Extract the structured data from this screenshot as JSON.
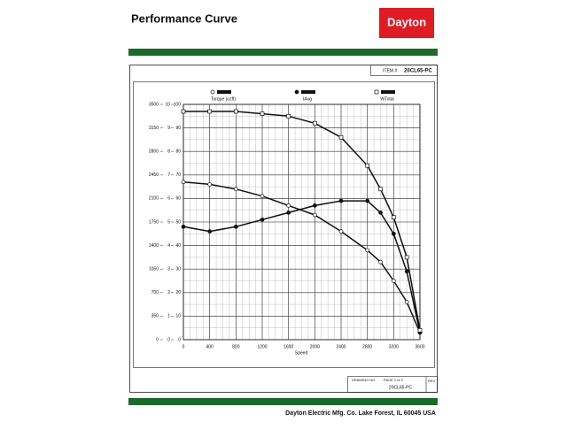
{
  "header": {
    "title": "Performance Curve",
    "logo": "Dayton"
  },
  "item": {
    "label": "ITEM #",
    "value": "20CL65-PC"
  },
  "chart_data": {
    "type": "line",
    "x_label": "Speed",
    "x": [
      0,
      400,
      800,
      1200,
      1600,
      2000,
      2400,
      2800,
      3000,
      3200,
      3400,
      3600
    ],
    "xlim": [
      0,
      3600
    ],
    "xticks": [
      0,
      400,
      800,
      1200,
      1600,
      2000,
      2400,
      2800,
      3200,
      3600
    ],
    "ylim": [
      0,
      100
    ],
    "yticks": [
      0,
      10,
      20,
      30,
      40,
      50,
      60,
      70,
      80,
      90,
      100
    ],
    "y2lim": [
      0,
      3500
    ],
    "y2ticks": [
      0,
      350,
      700,
      1050,
      1400,
      1750,
      2100,
      2450,
      2800,
      3150,
      3500
    ],
    "y3lim": [
      0,
      10
    ],
    "y3ticks": [
      0,
      1,
      2,
      3,
      4,
      5,
      6,
      7,
      8,
      9,
      10
    ],
    "grid": true,
    "series": [
      {
        "name": "Torque (ozft)",
        "color": "#111111",
        "marker": "circle",
        "values": [
          67,
          66,
          64,
          61,
          57,
          53,
          46,
          38,
          33,
          25,
          16,
          3
        ]
      },
      {
        "name": "IAvg",
        "color": "#111111",
        "marker": "dot",
        "values": [
          48,
          46,
          48,
          51,
          54,
          57,
          59,
          59,
          54,
          45,
          29,
          3
        ]
      },
      {
        "name": "WTotal",
        "color": "#111111",
        "marker": "square",
        "values": [
          97,
          97,
          97,
          96,
          95,
          92,
          86,
          74,
          64,
          52,
          35,
          4
        ]
      }
    ]
  },
  "footer": {
    "drawing_no": "DRAWING NO.",
    "page": "PAGE 1 of 2",
    "number": "20CL65-PC",
    "rev": "REV",
    "company": "Dayton Electric Mfg. Co.  Lake Forest, IL  60045  USA"
  }
}
